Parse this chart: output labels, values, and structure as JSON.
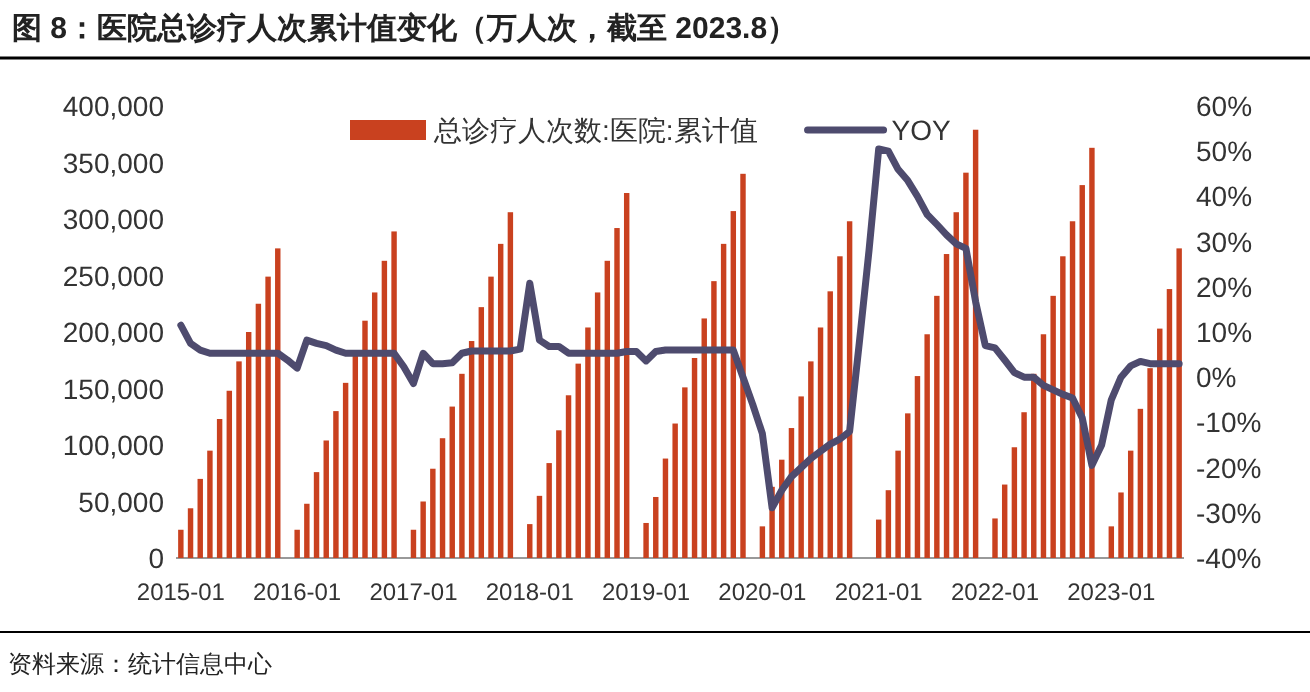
{
  "chart_data": {
    "type": "bar",
    "title": "图 8：医院总诊疗人次累计值变化（万人次，截至 2023.8）",
    "annotations": [
      "资料来源：统计信息中心"
    ],
    "categories": [
      "2015-01",
      null,
      null,
      null,
      null,
      null,
      null,
      null,
      null,
      null,
      null,
      null,
      "2016-01",
      null,
      null,
      null,
      null,
      null,
      null,
      null,
      null,
      null,
      null,
      null,
      "2017-01",
      null,
      null,
      null,
      null,
      null,
      null,
      null,
      null,
      null,
      null,
      null,
      "2018-01",
      null,
      null,
      null,
      null,
      null,
      null,
      null,
      null,
      null,
      null,
      null,
      "2019-01",
      null,
      null,
      null,
      null,
      null,
      null,
      null,
      null,
      null,
      null,
      null,
      "2020-01",
      null,
      null,
      null,
      null,
      null,
      null,
      null,
      null,
      null,
      null,
      null,
      "2021-01",
      null,
      null,
      null,
      null,
      null,
      null,
      null,
      null,
      null,
      null,
      null,
      "2022-01",
      null,
      null,
      null,
      null,
      null,
      null,
      null,
      null,
      null,
      null,
      null,
      "2023-01",
      null,
      null,
      null,
      null,
      null,
      null,
      null
    ],
    "series": [
      {
        "name": "总诊疗人次数:医院:累计值",
        "color": "#c9411f",
        "values": [
          25000,
          44000,
          70000,
          95000,
          123000,
          148000,
          174000,
          200000,
          225000,
          249000,
          274000,
          null,
          25000,
          48000,
          76000,
          104000,
          130000,
          155000,
          180000,
          210000,
          235000,
          263000,
          289000,
          null,
          25000,
          50000,
          79000,
          106000,
          134000,
          163000,
          192000,
          222000,
          249000,
          278000,
          306000,
          null,
          30000,
          55000,
          84000,
          113000,
          144000,
          172000,
          204000,
          235000,
          263000,
          292000,
          323000,
          null,
          31000,
          54000,
          88000,
          119000,
          151000,
          177000,
          212000,
          245000,
          278000,
          307000,
          340000,
          null,
          28000,
          63000,
          87000,
          115000,
          143000,
          174000,
          204000,
          236000,
          267000,
          298000,
          null,
          null,
          34000,
          60000,
          95000,
          128000,
          161000,
          198000,
          232000,
          269000,
          306000,
          341000,
          379000,
          null,
          35000,
          65000,
          98000,
          129000,
          163000,
          198000,
          232000,
          267000,
          298000,
          330000,
          363000,
          null,
          28000,
          58000,
          95000,
          132000,
          168000,
          203000,
          238000,
          274000
        ]
      },
      {
        "name": "YOY",
        "type": "line",
        "axis": "y2",
        "color": "#4e4b6e",
        "values": [
          11.5,
          7.5,
          6,
          5.3,
          5.3,
          5.3,
          5.3,
          5.3,
          5.3,
          5.3,
          5.3,
          3.8,
          2,
          8.2,
          7.5,
          7,
          6,
          5.3,
          5.3,
          5.3,
          5.3,
          5.3,
          5.3,
          2.3,
          -1.4,
          5.3,
          3,
          3,
          3.2,
          5.3,
          5.8,
          5.8,
          5.8,
          5.8,
          5.8,
          6.2,
          20.8,
          8.2,
          6.8,
          6.8,
          5.3,
          5.3,
          5.3,
          5.3,
          5.3,
          5.3,
          5.7,
          5.7,
          3.6,
          5.7,
          6,
          6,
          6,
          6,
          6,
          6,
          6,
          6,
          0,
          -6,
          -12.5,
          -28.9,
          -25,
          -22,
          -20,
          -18,
          -16.4,
          -14.8,
          -13.7,
          -12,
          7.6,
          28,
          50.5,
          50,
          46,
          43.5,
          40,
          36,
          33.8,
          31.5,
          29.5,
          28.5,
          16.7,
          7,
          6.5,
          3.8,
          1,
          0,
          0,
          -1.8,
          -2.8,
          -3.8,
          -4.6,
          -9,
          -19.5,
          -15,
          -5,
          0,
          2.5,
          3.5,
          3,
          3,
          3,
          3
        ]
      }
    ],
    "ylim": [
      0,
      400000
    ],
    "yticks": [
      0,
      {
        "value": 50000,
        "label": "50,000"
      },
      {
        "value": 100000,
        "label": "100,000"
      },
      {
        "value": 150000,
        "label": "150,000"
      },
      {
        "value": 200000,
        "label": "200,000"
      },
      {
        "value": 250000,
        "label": "250,000"
      },
      {
        "value": 300000,
        "label": "300,000"
      },
      {
        "value": 350000,
        "label": "350,000"
      },
      {
        "value": 400000,
        "label": "400,000"
      }
    ],
    "y2lim": [
      -40,
      60
    ],
    "y2ticks": [
      {
        "value": -40,
        "label": "-40%"
      },
      {
        "value": -30,
        "label": "-30%"
      },
      {
        "value": -20,
        "label": "-20%"
      },
      {
        "value": -10,
        "label": "-10%"
      },
      {
        "value": 0,
        "label": "0%"
      },
      {
        "value": 10,
        "label": "10%"
      },
      {
        "value": 20,
        "label": "20%"
      },
      {
        "value": 30,
        "label": "30%"
      },
      {
        "value": 40,
        "label": "40%"
      },
      {
        "value": 50,
        "label": "50%"
      },
      {
        "value": 60,
        "label": "60%"
      }
    ],
    "legend": "top",
    "grid": false,
    "marker": "none"
  }
}
